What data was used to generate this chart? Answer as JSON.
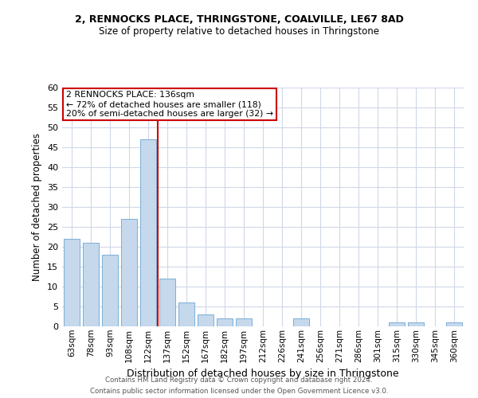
{
  "title1": "2, RENNOCKS PLACE, THRINGSTONE, COALVILLE, LE67 8AD",
  "title2": "Size of property relative to detached houses in Thringstone",
  "xlabel": "Distribution of detached houses by size in Thringstone",
  "ylabel": "Number of detached properties",
  "categories": [
    "63sqm",
    "78sqm",
    "93sqm",
    "108sqm",
    "122sqm",
    "137sqm",
    "152sqm",
    "167sqm",
    "182sqm",
    "197sqm",
    "212sqm",
    "226sqm",
    "241sqm",
    "256sqm",
    "271sqm",
    "286sqm",
    "301sqm",
    "315sqm",
    "330sqm",
    "345sqm",
    "360sqm"
  ],
  "values": [
    22,
    21,
    18,
    27,
    47,
    12,
    6,
    3,
    2,
    2,
    0,
    0,
    2,
    0,
    0,
    0,
    0,
    1,
    1,
    0,
    1
  ],
  "bar_color": "#c5d8ec",
  "bar_edge_color": "#7bafd4",
  "vline_color": "#cc0000",
  "ylim": [
    0,
    60
  ],
  "yticks": [
    0,
    5,
    10,
    15,
    20,
    25,
    30,
    35,
    40,
    45,
    50,
    55,
    60
  ],
  "annotation_box_text": "2 RENNOCKS PLACE: 136sqm\n← 72% of detached houses are smaller (118)\n20% of semi-detached houses are larger (32) →",
  "annotation_box_color": "#cc0000",
  "grid_color": "#d0d8e8",
  "background_color": "#ffffff",
  "footer1": "Contains HM Land Registry data © Crown copyright and database right 2024.",
  "footer2": "Contains public sector information licensed under the Open Government Licence v3.0."
}
